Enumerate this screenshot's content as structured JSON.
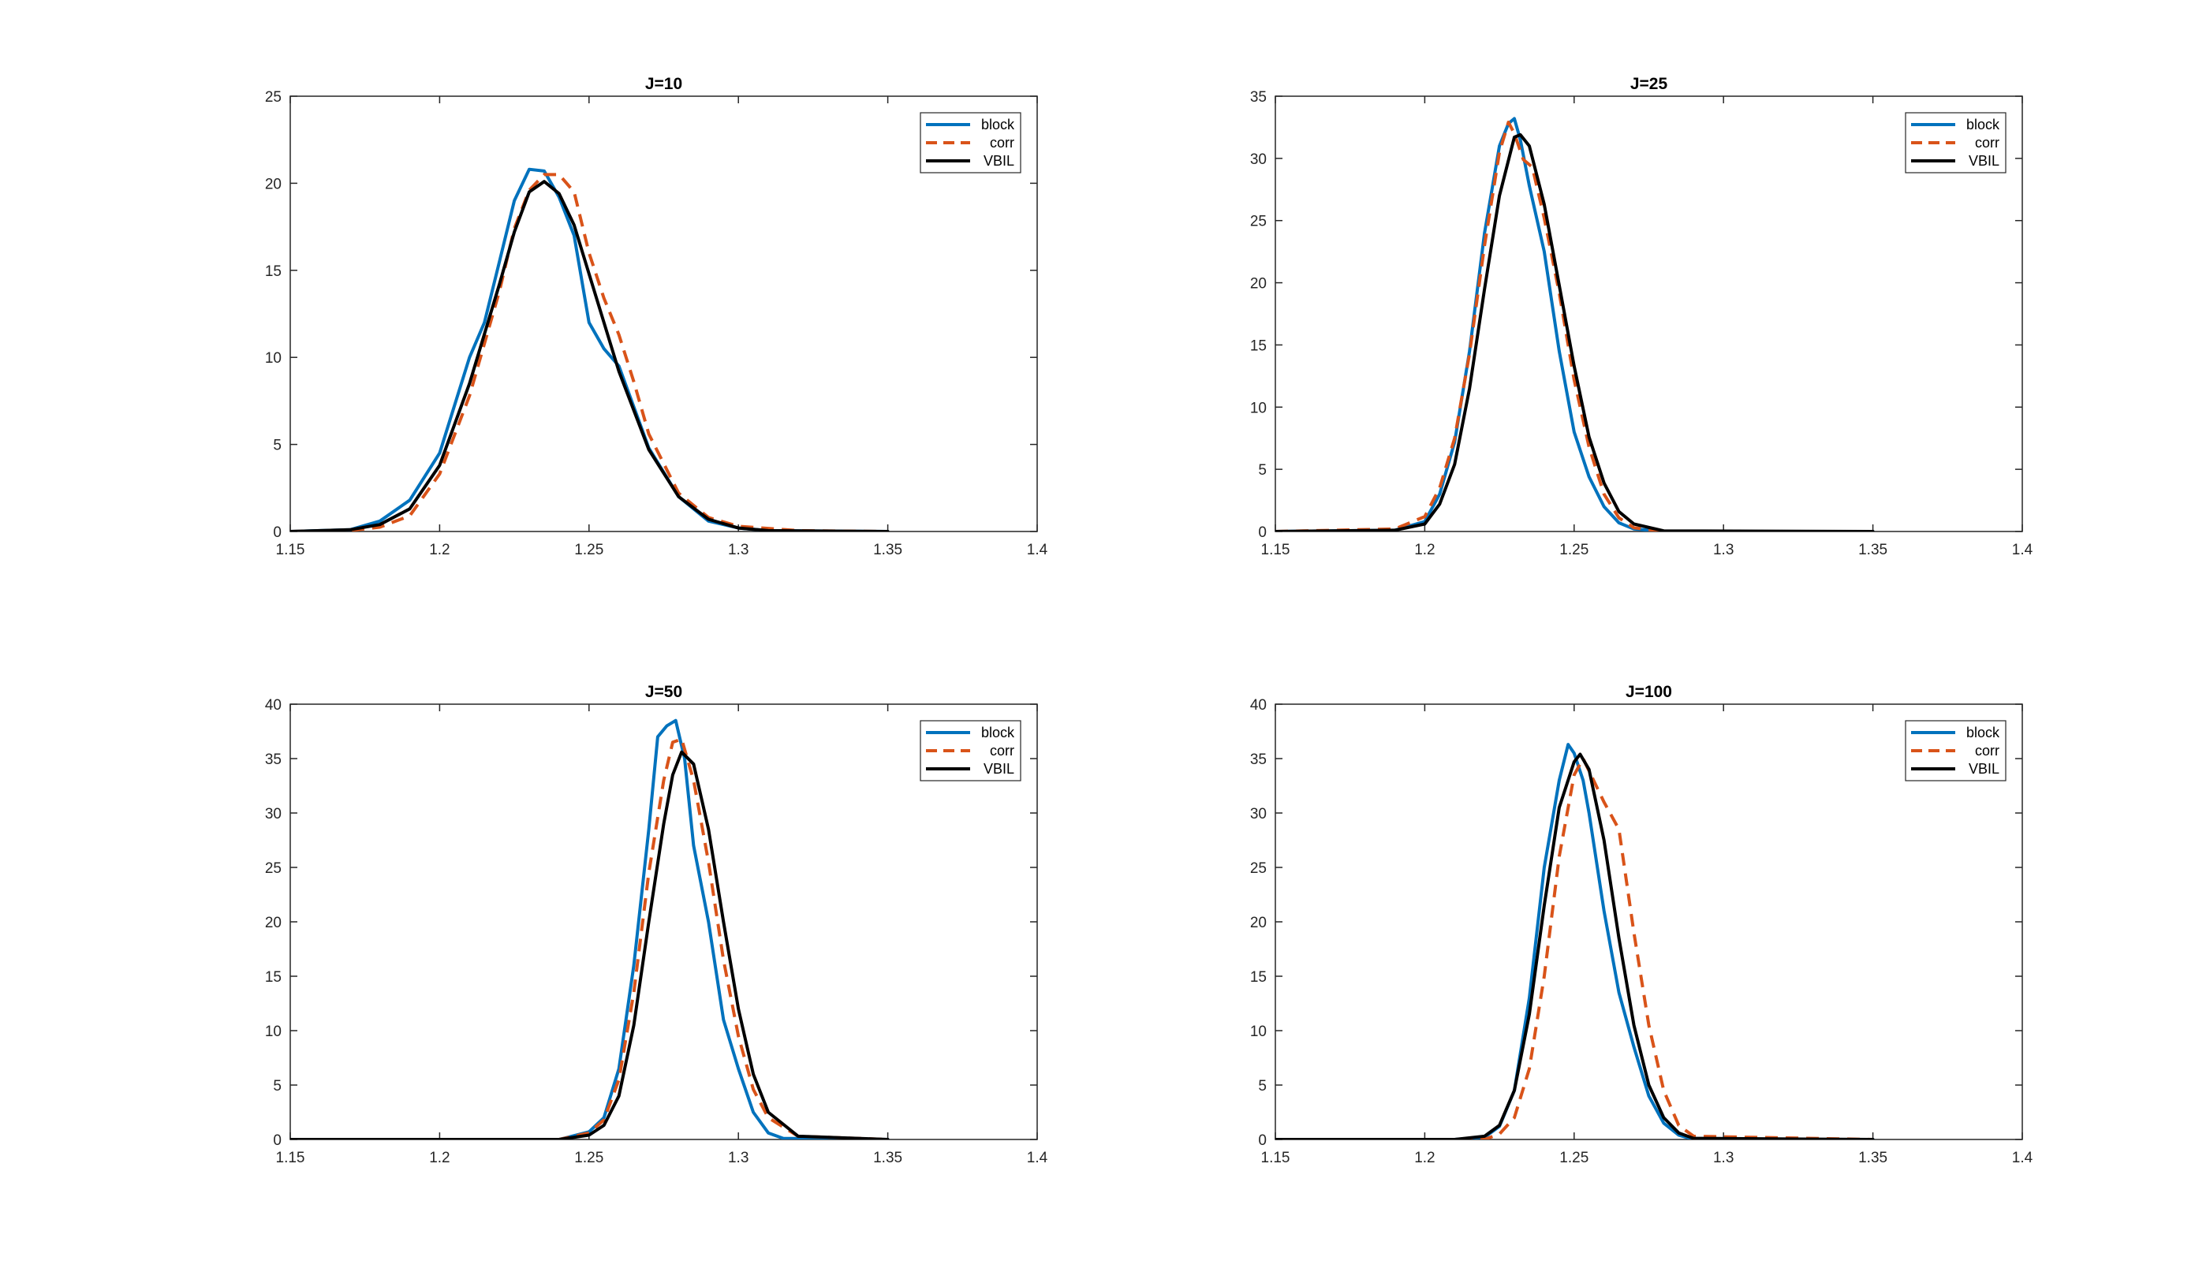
{
  "colors": {
    "block": "#0072BD",
    "corr": "#D95319",
    "VBIL": "#000000",
    "axis": "#262626"
  },
  "chart_data": [
    {
      "type": "line",
      "title": "J=10",
      "xlim": [
        1.15,
        1.4
      ],
      "ylim": [
        0,
        25
      ],
      "xticks": [
        "1.15",
        "1.2",
        "1.25",
        "1.3",
        "1.35",
        "1.4"
      ],
      "yticks": [
        "0",
        "5",
        "10",
        "15",
        "20",
        "25"
      ],
      "legend": [
        "block",
        "corr",
        "VBIL"
      ],
      "legend_position": "top-right",
      "grid": false,
      "series": [
        {
          "name": "block",
          "style": "solid",
          "x": [
            1.15,
            1.17,
            1.18,
            1.19,
            1.2,
            1.21,
            1.215,
            1.22,
            1.225,
            1.23,
            1.235,
            1.24,
            1.245,
            1.25,
            1.255,
            1.26,
            1.27,
            1.28,
            1.29,
            1.3,
            1.31,
            1.35
          ],
          "y": [
            0,
            0.1,
            0.6,
            1.8,
            4.5,
            10,
            12,
            15.5,
            19,
            20.8,
            20.7,
            19.2,
            17,
            12,
            10.5,
            9.5,
            4.8,
            2,
            0.6,
            0.2,
            0.05,
            0
          ]
        },
        {
          "name": "corr",
          "style": "dashed",
          "x": [
            1.15,
            1.17,
            1.18,
            1.19,
            1.2,
            1.21,
            1.22,
            1.225,
            1.23,
            1.235,
            1.24,
            1.245,
            1.25,
            1.255,
            1.26,
            1.265,
            1.27,
            1.28,
            1.29,
            1.3,
            1.32,
            1.35
          ],
          "y": [
            0,
            0.05,
            0.25,
            0.9,
            3.3,
            7.8,
            13.8,
            17.4,
            19.6,
            20.5,
            20.5,
            19.5,
            16,
            13.4,
            11.3,
            8.6,
            5.6,
            2.2,
            0.8,
            0.3,
            0.05,
            0
          ]
        },
        {
          "name": "VBIL",
          "style": "solid",
          "x": [
            1.15,
            1.17,
            1.18,
            1.19,
            1.2,
            1.21,
            1.22,
            1.225,
            1.23,
            1.235,
            1.24,
            1.245,
            1.25,
            1.26,
            1.27,
            1.28,
            1.29,
            1.3,
            1.31,
            1.35
          ],
          "y": [
            0,
            0.1,
            0.4,
            1.3,
            3.8,
            8.5,
            14.2,
            17.2,
            19.5,
            20.1,
            19.4,
            17.6,
            14.8,
            9.2,
            4.7,
            2,
            0.7,
            0.2,
            0.05,
            0
          ]
        }
      ]
    },
    {
      "type": "line",
      "title": "J=25",
      "xlim": [
        1.15,
        1.4
      ],
      "ylim": [
        0,
        35
      ],
      "xticks": [
        "1.15",
        "1.2",
        "1.25",
        "1.3",
        "1.35",
        "1.4"
      ],
      "yticks": [
        "0",
        "5",
        "10",
        "15",
        "20",
        "25",
        "30",
        "35"
      ],
      "legend": [
        "block",
        "corr",
        "VBIL"
      ],
      "legend_position": "top-right",
      "grid": false,
      "series": [
        {
          "name": "block",
          "style": "solid",
          "x": [
            1.15,
            1.19,
            1.2,
            1.205,
            1.21,
            1.215,
            1.22,
            1.225,
            1.228,
            1.23,
            1.232,
            1.235,
            1.24,
            1.245,
            1.25,
            1.255,
            1.26,
            1.265,
            1.27,
            1.28,
            1.35
          ],
          "y": [
            0,
            0.1,
            0.8,
            3,
            7.2,
            14.5,
            24,
            31,
            32.8,
            33.2,
            31.5,
            27.8,
            22.5,
            14.5,
            8,
            4.4,
            2,
            0.7,
            0.2,
            0,
            0
          ]
        },
        {
          "name": "corr",
          "style": "dashed",
          "x": [
            1.15,
            1.19,
            1.2,
            1.205,
            1.21,
            1.215,
            1.22,
            1.225,
            1.228,
            1.23,
            1.233,
            1.236,
            1.24,
            1.245,
            1.25,
            1.255,
            1.26,
            1.265,
            1.27,
            1.28,
            1.35
          ],
          "y": [
            0,
            0.2,
            1.2,
            3.5,
            7.5,
            14.3,
            23,
            30.5,
            32.9,
            32,
            29.9,
            29.3,
            25.2,
            19.2,
            12.2,
            6.8,
            3,
            1.1,
            0.3,
            0,
            0
          ]
        },
        {
          "name": "VBIL",
          "style": "solid",
          "x": [
            1.15,
            1.19,
            1.2,
            1.205,
            1.21,
            1.215,
            1.22,
            1.225,
            1.23,
            1.232,
            1.235,
            1.24,
            1.245,
            1.25,
            1.255,
            1.26,
            1.265,
            1.27,
            1.28,
            1.35
          ],
          "y": [
            0,
            0.1,
            0.6,
            2.2,
            5.4,
            11.5,
            19.5,
            27,
            31.7,
            31.9,
            31,
            26.3,
            19.8,
            13.3,
            7.6,
            3.9,
            1.6,
            0.6,
            0.05,
            0
          ]
        }
      ]
    },
    {
      "type": "line",
      "title": "J=50",
      "xlim": [
        1.15,
        1.4
      ],
      "ylim": [
        0,
        40
      ],
      "xticks": [
        "1.15",
        "1.2",
        "1.25",
        "1.3",
        "1.35",
        "1.4"
      ],
      "yticks": [
        "0",
        "5",
        "10",
        "15",
        "20",
        "25",
        "30",
        "35",
        "40"
      ],
      "legend": [
        "block",
        "corr",
        "VBIL"
      ],
      "legend_position": "top-right",
      "grid": false,
      "series": [
        {
          "name": "block",
          "style": "solid",
          "x": [
            1.15,
            1.24,
            1.25,
            1.255,
            1.26,
            1.265,
            1.27,
            1.273,
            1.276,
            1.279,
            1.282,
            1.285,
            1.29,
            1.295,
            1.3,
            1.305,
            1.31,
            1.315,
            1.35
          ],
          "y": [
            0,
            0,
            0.7,
            2,
            6.5,
            16,
            28.5,
            37,
            38,
            38.5,
            35,
            27,
            20,
            11,
            6.5,
            2.5,
            0.6,
            0.1,
            0
          ]
        },
        {
          "name": "corr",
          "style": "dashed",
          "x": [
            1.15,
            1.24,
            1.25,
            1.255,
            1.26,
            1.265,
            1.27,
            1.275,
            1.278,
            1.281,
            1.285,
            1.29,
            1.295,
            1.3,
            1.305,
            1.31,
            1.32,
            1.35
          ],
          "y": [
            0,
            0,
            0.6,
            1.8,
            5.5,
            13.5,
            24.5,
            33,
            36.5,
            36.8,
            33,
            25.5,
            16.5,
            9.5,
            4.6,
            2,
            0.3,
            0
          ]
        },
        {
          "name": "VBIL",
          "style": "solid",
          "x": [
            1.15,
            1.24,
            1.25,
            1.255,
            1.26,
            1.265,
            1.27,
            1.275,
            1.278,
            1.281,
            1.285,
            1.29,
            1.295,
            1.3,
            1.305,
            1.31,
            1.32,
            1.35
          ],
          "y": [
            0,
            0,
            0.4,
            1.3,
            4,
            10.5,
            20,
            29,
            33.5,
            35.6,
            34.5,
            28.5,
            20,
            12,
            6,
            2.5,
            0.3,
            0
          ]
        }
      ]
    },
    {
      "type": "line",
      "title": "J=100",
      "xlim": [
        1.15,
        1.4
      ],
      "ylim": [
        0,
        40
      ],
      "xticks": [
        "1.15",
        "1.2",
        "1.25",
        "1.3",
        "1.35",
        "1.4"
      ],
      "yticks": [
        "0",
        "5",
        "10",
        "15",
        "20",
        "25",
        "30",
        "35",
        "40"
      ],
      "legend": [
        "block",
        "corr",
        "VBIL"
      ],
      "legend_position": "top-right",
      "grid": false,
      "series": [
        {
          "name": "block",
          "style": "solid",
          "x": [
            1.15,
            1.21,
            1.22,
            1.225,
            1.23,
            1.235,
            1.24,
            1.245,
            1.248,
            1.25,
            1.253,
            1.255,
            1.26,
            1.265,
            1.27,
            1.275,
            1.28,
            1.285,
            1.29,
            1.35
          ],
          "y": [
            0,
            0,
            0.2,
            1.2,
            4.5,
            13,
            25,
            33,
            36.3,
            35.5,
            33,
            30,
            21,
            13.5,
            8.5,
            4,
            1.5,
            0.4,
            0,
            0
          ]
        },
        {
          "name": "corr",
          "style": "dashed",
          "x": [
            1.15,
            1.22,
            1.225,
            1.23,
            1.235,
            1.24,
            1.245,
            1.25,
            1.253,
            1.256,
            1.26,
            1.265,
            1.27,
            1.275,
            1.28,
            1.285,
            1.29,
            1.35
          ],
          "y": [
            0,
            0,
            0.5,
            2,
            6.5,
            15,
            26,
            33.5,
            35,
            33.3,
            31,
            28.5,
            19,
            10.5,
            4.5,
            1.3,
            0.3,
            0
          ]
        },
        {
          "name": "VBIL",
          "style": "solid",
          "x": [
            1.15,
            1.21,
            1.22,
            1.225,
            1.23,
            1.235,
            1.24,
            1.245,
            1.25,
            1.252,
            1.255,
            1.26,
            1.265,
            1.27,
            1.275,
            1.28,
            1.285,
            1.29,
            1.35
          ],
          "y": [
            0,
            0,
            0.3,
            1.3,
            4.5,
            11.5,
            21.5,
            30.5,
            34.7,
            35.4,
            34,
            27.5,
            18.5,
            10.5,
            5,
            2,
            0.6,
            0.1,
            0
          ]
        }
      ]
    }
  ]
}
